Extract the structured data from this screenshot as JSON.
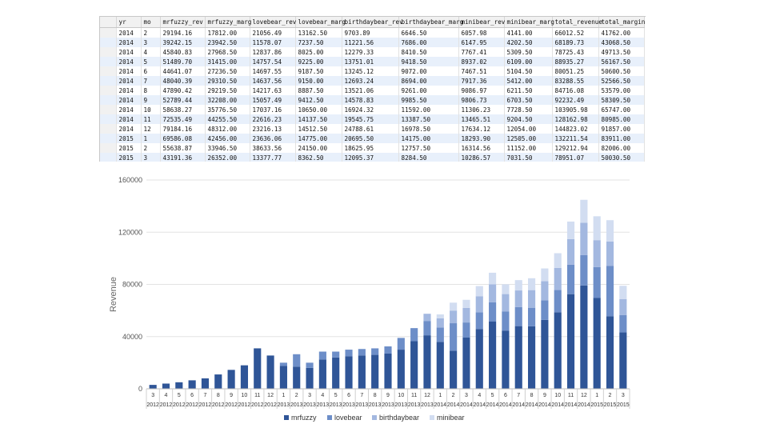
{
  "grid": {
    "columns": [
      "yr",
      "mo",
      "mrfuzzy_rev",
      "mrfuzzy_marg",
      "lovebear_rev",
      "lovebear_marg",
      "birthdaybear_rev",
      "birthdaybear_marg",
      "minibear_rev",
      "minibear_marg",
      "total_revenue",
      "total_margin"
    ],
    "rows": [
      [
        "2014",
        "2",
        "29194.16",
        "17812.00",
        "21056.49",
        "13162.50",
        "9703.89",
        "6646.50",
        "6057.98",
        "4141.00",
        "66012.52",
        "41762.00"
      ],
      [
        "2014",
        "3",
        "39242.15",
        "23942.50",
        "11578.07",
        "7237.50",
        "11221.56",
        "7686.00",
        "6147.95",
        "4202.50",
        "68189.73",
        "43068.50"
      ],
      [
        "2014",
        "4",
        "45840.83",
        "27968.50",
        "12837.86",
        "8025.00",
        "12279.33",
        "8410.50",
        "7767.41",
        "5309.50",
        "78725.43",
        "49713.50"
      ],
      [
        "2014",
        "5",
        "51489.70",
        "31415.00",
        "14757.54",
        "9225.00",
        "13751.01",
        "9418.50",
        "8937.02",
        "6109.00",
        "88935.27",
        "56167.50"
      ],
      [
        "2014",
        "6",
        "44641.07",
        "27236.50",
        "14697.55",
        "9187.50",
        "13245.12",
        "9072.00",
        "7467.51",
        "5104.50",
        "80051.25",
        "50600.50"
      ],
      [
        "2014",
        "7",
        "48040.39",
        "29310.50",
        "14637.56",
        "9150.00",
        "12693.24",
        "8694.00",
        "7917.36",
        "5412.00",
        "83288.55",
        "52566.50"
      ],
      [
        "2014",
        "8",
        "47890.42",
        "29219.50",
        "14217.63",
        "8887.50",
        "13521.06",
        "9261.00",
        "9086.97",
        "6211.50",
        "84716.08",
        "53579.00"
      ],
      [
        "2014",
        "9",
        "52789.44",
        "32208.00",
        "15057.49",
        "9412.50",
        "14578.83",
        "9985.50",
        "9806.73",
        "6703.50",
        "92232.49",
        "58309.50"
      ],
      [
        "2014",
        "10",
        "58638.27",
        "35776.50",
        "17037.16",
        "10650.00",
        "16924.32",
        "11592.00",
        "11306.23",
        "7728.50",
        "103905.98",
        "65747.00"
      ],
      [
        "2014",
        "11",
        "72535.49",
        "44255.50",
        "22616.23",
        "14137.50",
        "19545.75",
        "13387.50",
        "13465.51",
        "9204.50",
        "128162.98",
        "80985.00"
      ],
      [
        "2014",
        "12",
        "79184.16",
        "48312.00",
        "23216.13",
        "14512.50",
        "24788.61",
        "16978.50",
        "17634.12",
        "12054.00",
        "144823.02",
        "91857.00"
      ],
      [
        "2015",
        "1",
        "69586.08",
        "42456.00",
        "23636.06",
        "14775.00",
        "20695.50",
        "14175.00",
        "18293.90",
        "12505.00",
        "132211.54",
        "83911.00"
      ],
      [
        "2015",
        "2",
        "55638.87",
        "33946.50",
        "38633.56",
        "24150.00",
        "18625.95",
        "12757.50",
        "16314.56",
        "11152.00",
        "129212.94",
        "82006.00"
      ],
      [
        "2015",
        "3",
        "43191.36",
        "26352.00",
        "13377.77",
        "8362.50",
        "12095.37",
        "8284.50",
        "10286.57",
        "7031.50",
        "78951.07",
        "50030.50"
      ]
    ]
  },
  "chart_data": {
    "type": "bar",
    "stacked": true,
    "title": "",
    "xlabel": "",
    "ylabel": "Revenue",
    "ylim": [
      0,
      160000
    ],
    "yticks": [
      0,
      40000,
      80000,
      120000,
      160000
    ],
    "ytick_labels": [
      "0",
      "40000",
      "80000",
      "120000",
      "160000"
    ],
    "grid": true,
    "legend_position": "bottom",
    "categories": [
      {
        "mo": "3",
        "yr": "2012"
      },
      {
        "mo": "4",
        "yr": "2012"
      },
      {
        "mo": "5",
        "yr": "2012"
      },
      {
        "mo": "6",
        "yr": "2012"
      },
      {
        "mo": "7",
        "yr": "2012"
      },
      {
        "mo": "8",
        "yr": "2012"
      },
      {
        "mo": "9",
        "yr": "2012"
      },
      {
        "mo": "10",
        "yr": "2012"
      },
      {
        "mo": "11",
        "yr": "2012"
      },
      {
        "mo": "12",
        "yr": "2012"
      },
      {
        "mo": "1",
        "yr": "2013"
      },
      {
        "mo": "2",
        "yr": "2013"
      },
      {
        "mo": "3",
        "yr": "2013"
      },
      {
        "mo": "4",
        "yr": "2013"
      },
      {
        "mo": "5",
        "yr": "2013"
      },
      {
        "mo": "6",
        "yr": "2013"
      },
      {
        "mo": "7",
        "yr": "2013"
      },
      {
        "mo": "8",
        "yr": "2013"
      },
      {
        "mo": "9",
        "yr": "2013"
      },
      {
        "mo": "10",
        "yr": "2013"
      },
      {
        "mo": "11",
        "yr": "2013"
      },
      {
        "mo": "12",
        "yr": "2013"
      },
      {
        "mo": "1",
        "yr": "2014"
      },
      {
        "mo": "2",
        "yr": "2014"
      },
      {
        "mo": "3",
        "yr": "2014"
      },
      {
        "mo": "4",
        "yr": "2014"
      },
      {
        "mo": "5",
        "yr": "2014"
      },
      {
        "mo": "6",
        "yr": "2014"
      },
      {
        "mo": "7",
        "yr": "2014"
      },
      {
        "mo": "8",
        "yr": "2014"
      },
      {
        "mo": "9",
        "yr": "2014"
      },
      {
        "mo": "10",
        "yr": "2014"
      },
      {
        "mo": "11",
        "yr": "2014"
      },
      {
        "mo": "12",
        "yr": "2014"
      },
      {
        "mo": "1",
        "yr": "2015"
      },
      {
        "mo": "2",
        "yr": "2015"
      },
      {
        "mo": "3",
        "yr": "2015"
      }
    ],
    "series": [
      {
        "name": "mrfuzzy",
        "color": "#2f5597",
        "values": [
          3000,
          4000,
          5000,
          6500,
          8000,
          11000,
          14500,
          18000,
          31000,
          25500,
          17500,
          17000,
          16000,
          22500,
          24000,
          25000,
          25500,
          26000,
          27000,
          30000,
          36500,
          41000,
          36000,
          29194,
          39242,
          45841,
          51490,
          44641,
          48040,
          47890,
          52789,
          58638,
          72535,
          79184,
          69586,
          55639,
          43191
        ]
      },
      {
        "name": "lovebear",
        "color": "#6d8ec8",
        "values": [
          0,
          0,
          0,
          0,
          0,
          0,
          0,
          0,
          0,
          0,
          2500,
          9500,
          4000,
          6000,
          4500,
          5000,
          5000,
          5000,
          5500,
          9000,
          10000,
          11000,
          11000,
          21056,
          11578,
          12838,
          14758,
          14698,
          14638,
          14218,
          15057,
          17037,
          22616,
          23216,
          23636,
          38634,
          13378
        ]
      },
      {
        "name": "birthdaybear",
        "color": "#a3b8e0",
        "values": [
          0,
          0,
          0,
          0,
          0,
          0,
          0,
          0,
          0,
          0,
          0,
          0,
          0,
          0,
          0,
          0,
          0,
          0,
          0,
          0,
          0,
          5500,
          7000,
          9704,
          11222,
          12279,
          13751,
          13245,
          12693,
          13521,
          14579,
          16924,
          19546,
          24789,
          20696,
          18626,
          12095
        ]
      },
      {
        "name": "minibear",
        "color": "#d2ddf1",
        "values": [
          0,
          0,
          0,
          0,
          0,
          0,
          0,
          0,
          0,
          0,
          0,
          0,
          0,
          0,
          0,
          0,
          0,
          0,
          0,
          0,
          0,
          0,
          3000,
          6058,
          6148,
          7767,
          8937,
          7468,
          7917,
          9087,
          9807,
          11306,
          13466,
          17634,
          18294,
          16315,
          10287
        ]
      }
    ]
  }
}
